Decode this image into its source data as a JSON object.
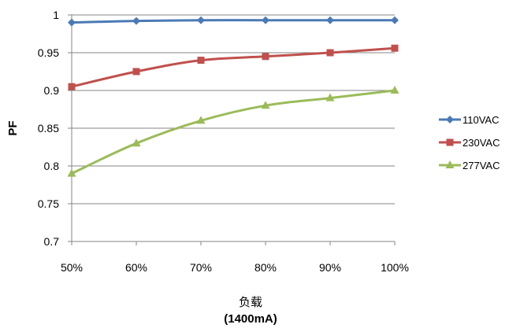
{
  "chart_data": {
    "type": "line",
    "categories": [
      "50%",
      "60%",
      "70%",
      "80%",
      "90%",
      "100%"
    ],
    "series": [
      {
        "name": "110VAC",
        "values": [
          0.99,
          0.992,
          0.993,
          0.993,
          0.993,
          0.993
        ],
        "color": "#4a7ab5",
        "marker": "diamond"
      },
      {
        "name": "230VAC",
        "values": [
          0.905,
          0.925,
          0.94,
          0.945,
          0.95,
          0.956
        ],
        "color": "#c0504d",
        "marker": "square"
      },
      {
        "name": "277VAC",
        "values": [
          0.79,
          0.83,
          0.86,
          0.88,
          0.89,
          0.9
        ],
        "color": "#9bbb59",
        "marker": "triangle"
      }
    ],
    "ylabel": "PF",
    "xlabel": "负载",
    "xlabel_unit": "(1400mA)",
    "ylim": [
      0.7,
      1.0
    ],
    "yticks": [
      "0.7",
      "0.75",
      "0.8",
      "0.85",
      "0.9",
      "0.95",
      "1"
    ],
    "grid": true,
    "legend_position": "right"
  }
}
